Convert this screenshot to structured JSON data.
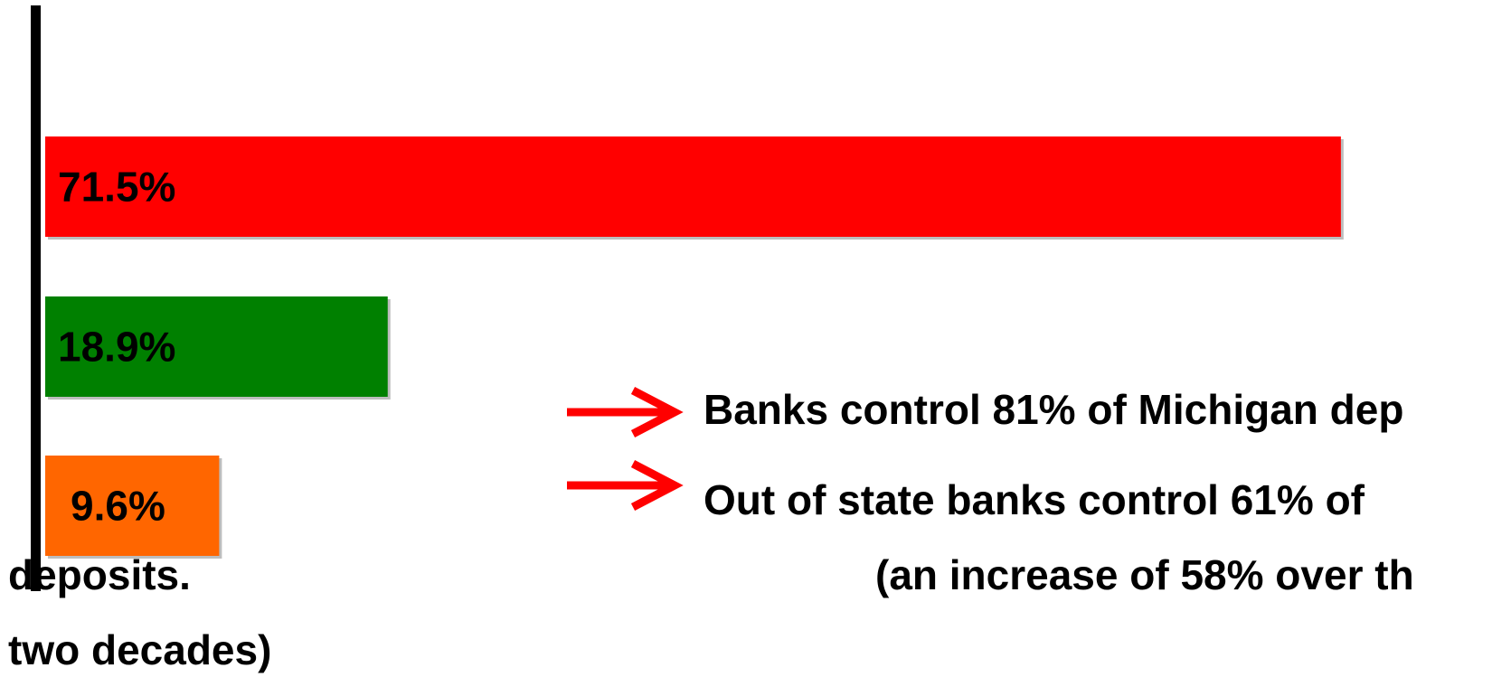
{
  "chart_data": {
    "type": "bar",
    "orientation": "horizontal",
    "values": [
      71.5,
      18.9,
      9.6
    ],
    "data_labels": [
      "71.5%",
      "18.9%",
      "9.6%"
    ],
    "colors": [
      "#ff0000",
      "#008000",
      "#ff6600"
    ],
    "xlim": [
      0,
      100
    ],
    "title": "",
    "xlabel": "",
    "ylabel": "",
    "grid": false,
    "legend": "none"
  },
  "callouts": {
    "line1": "Banks control 81% of Michigan dep",
    "line2": "Out of state banks control 61% of",
    "line3": "(an increase of 58% over th",
    "line4": "deposits.",
    "line5": "two decades)"
  },
  "arrow_color": "#ff0000"
}
